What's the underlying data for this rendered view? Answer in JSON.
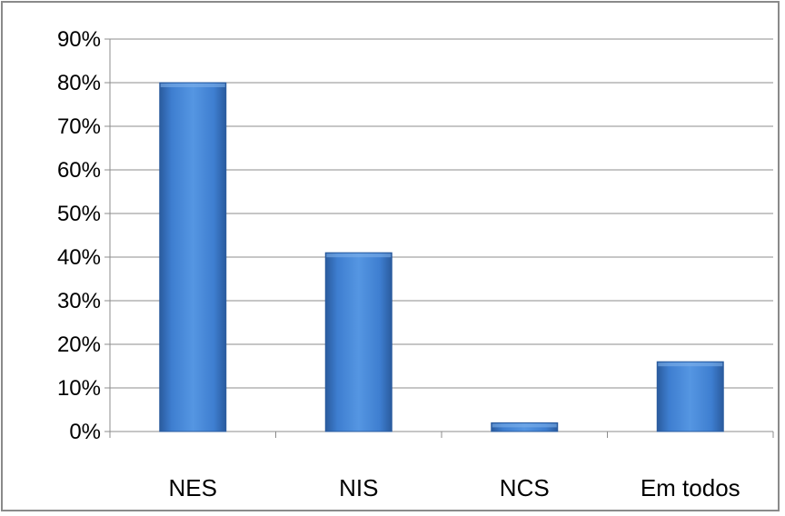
{
  "chart_data": {
    "type": "bar",
    "categories": [
      "NES",
      "NIS",
      "NCS",
      "Em todos"
    ],
    "values": [
      80,
      41,
      2,
      16
    ],
    "ylim": [
      0,
      90
    ],
    "ytick_step": 10,
    "ytick_format": "percent",
    "grid": true,
    "legend": "none",
    "title": "",
    "xlabel": "",
    "ylabel": "",
    "colors": {
      "bar_light": "#4f8fdc",
      "bar_mid": "#3a78c8",
      "bar_dark": "#2a5b9e",
      "gridline": "#8c8c8c",
      "axis": "#8c8c8c"
    }
  }
}
